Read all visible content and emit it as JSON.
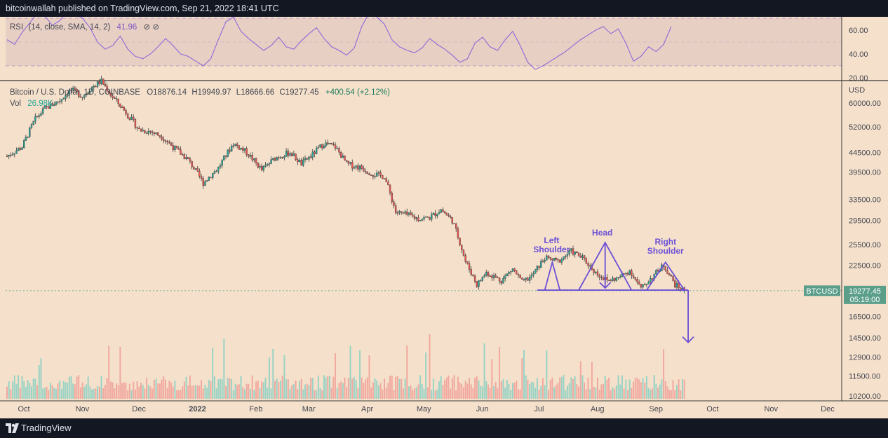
{
  "header": {
    "publisher_line": "bitcoinwallah published on TradingView.com, Sep 21, 2022 18:41 UTC"
  },
  "footer": {
    "brand": "TradingView",
    "logo_icon": "tradingview-logo-icon"
  },
  "colors": {
    "background": "#f5e1cb",
    "up": "#26a69a",
    "down": "#ef5350",
    "rsi": "#7e57c2",
    "pattern": "#6b4fd6"
  },
  "chart_data": [
    {
      "type": "line",
      "indicator": "RSI",
      "legend": {
        "name": "RSI",
        "params": "(14, close, SMA, 14, 2)",
        "value": "41.96",
        "flags": "⊘ ⊘"
      },
      "yticks": [
        "60.00",
        "40.00",
        "20.00"
      ],
      "band": [
        30,
        70
      ],
      "ylim": [
        15,
        80
      ],
      "x": [
        0,
        4,
        8,
        12,
        16,
        20,
        24,
        28,
        32,
        36,
        40,
        44,
        48,
        52,
        56,
        60,
        64,
        68,
        72,
        76,
        80,
        84,
        88,
        92,
        96,
        100,
        104,
        108,
        112,
        116,
        120,
        124,
        128,
        132,
        136,
        140,
        144,
        148,
        152,
        156,
        160,
        164,
        168,
        172,
        176,
        180,
        184,
        188,
        192,
        196,
        200,
        204,
        208,
        212,
        216,
        220,
        224,
        228,
        232,
        236,
        240,
        244,
        248,
        252,
        256,
        260,
        264,
        268,
        272,
        276,
        280,
        284,
        288,
        292,
        296,
        300,
        304,
        308,
        312,
        316,
        320,
        324,
        328,
        332,
        336,
        340,
        344,
        348,
        352
      ],
      "values": [
        52,
        48,
        58,
        66,
        74,
        72,
        64,
        68,
        76,
        73,
        70,
        62,
        50,
        44,
        47,
        55,
        44,
        38,
        36,
        40,
        46,
        53,
        47,
        40,
        38,
        34,
        30,
        36,
        52,
        67,
        71,
        59,
        53,
        48,
        43,
        47,
        54,
        46,
        44,
        51,
        57,
        62,
        53,
        46,
        43,
        39,
        45,
        63,
        75,
        71,
        65,
        52,
        46,
        43,
        41,
        45,
        53,
        48,
        44,
        39,
        33,
        36,
        49,
        54,
        46,
        43,
        52,
        59,
        47,
        33,
        27,
        30,
        34,
        38,
        42,
        47,
        52,
        56,
        60,
        63,
        57,
        61,
        49,
        34,
        38,
        46,
        42,
        48,
        63
      ],
      "note": "x is the candle (day) index, 0 = first candle on the chart"
    },
    {
      "type": "candlestick",
      "symbol": "Bitcoin / U.S. Dollar, 1D, COINBASE",
      "ohlc_text": {
        "o": "O18876.14",
        "h": "H19949.97",
        "l": "L18666.66",
        "c": "C19277.45",
        "chg": "+400.54 (+2.12%)"
      },
      "volume_label": "Vol",
      "volume_value": "26.98K",
      "currency": "USD",
      "price_ticks": [
        "60000.00",
        "52000.00",
        "44500.00",
        "39500.00",
        "33500.00",
        "29500.00",
        "25500.00",
        "22500.00",
        "16500.00",
        "14500.00",
        "12900.00",
        "11500.00",
        "10200.00"
      ],
      "price_ticks_values": [
        60000,
        52000,
        44500,
        39500,
        33500,
        29500,
        25500,
        22500,
        16500,
        14500,
        12900,
        11500,
        10200
      ],
      "month_labels": [
        "Oct",
        "Nov",
        "Dec",
        "2022",
        "Feb",
        "Mar",
        "Apr",
        "May",
        "Jun",
        "Jul",
        "Aug",
        "Sep",
        "Oct",
        "Nov",
        "Dec"
      ],
      "month_label_day_index": [
        0,
        31,
        61,
        92,
        123,
        151,
        182,
        212,
        243,
        273,
        304,
        335,
        365,
        396,
        426
      ],
      "last_price": {
        "symbol_tag": "BTCUSD",
        "value": "19277.45",
        "countdown": "05:19:00",
        "price": 19277.45
      },
      "close_path": {
        "day": [
          0,
          8,
          15,
          20,
          28,
          34,
          40,
          45,
          50,
          55,
          62,
          70,
          76,
          82,
          88,
          96,
          104,
          112,
          120,
          127,
          135,
          142,
          150,
          156,
          162,
          168,
          174,
          180,
          188,
          194,
          200,
          206,
          212,
          218,
          224,
          230,
          236,
          243,
          249,
          254,
          262,
          268,
          273,
          278,
          285,
          292,
          299,
          305,
          312,
          318,
          324,
          330,
          336,
          342,
          348,
          354,
          359
        ],
        "close": [
          43500,
          46000,
          54500,
          58000,
          61000,
          65000,
          62500,
          66000,
          68500,
          63000,
          57500,
          51000,
          50500,
          49000,
          46000,
          42500,
          37000,
          40500,
          47000,
          44500,
          40000,
          43000,
          44500,
          41500,
          44000,
          47000,
          46000,
          41500,
          40500,
          39000,
          38500,
          31000,
          30500,
          29800,
          30000,
          31500,
          29500,
          23000,
          20000,
          21500,
          20500,
          22000,
          20300,
          21000,
          23500,
          23000,
          24500,
          23500,
          21500,
          20500,
          20800,
          21800,
          19500,
          21000,
          22500,
          20000,
          19277.45
        ]
      },
      "pattern": {
        "labels": [
          "Left\nShoulder",
          "Head",
          "Right\nShoulder"
        ],
        "neckline_price": 19350,
        "left_shoulder": {
          "day": 289,
          "price": 22900
        },
        "head": {
          "day": 317,
          "price": 25800
        },
        "right_shoulder": {
          "day": 349,
          "price": 22900
        },
        "head_target_price": 19600,
        "breakdown_target_price": 14100
      }
    }
  ]
}
